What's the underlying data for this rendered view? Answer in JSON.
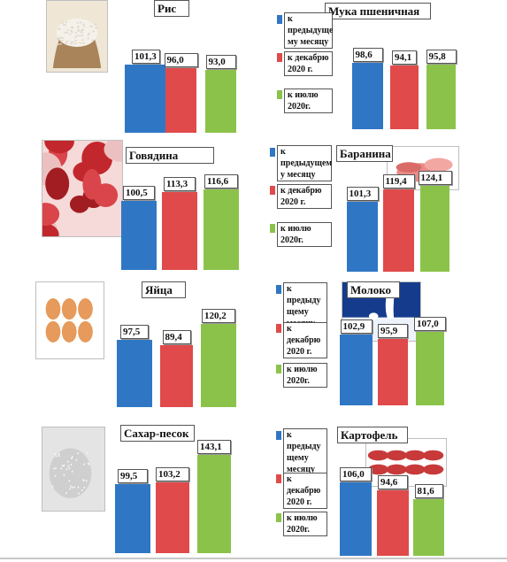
{
  "colors": {
    "blue": "#2f77c5",
    "red": "#e04a4a",
    "green": "#8bc34a"
  },
  "legend_icons": {
    "blue": "square",
    "red": "square",
    "green": "square"
  },
  "chart_data": [
    {
      "type": "bar",
      "title": "Рис",
      "categories": [
        "к предыдущему месяцу",
        "к декабрю 2020 г.",
        "к июлю 2020г."
      ],
      "values": [
        101.3,
        96.0,
        93.0
      ],
      "labels": [
        "101,3",
        "96,0",
        "93,0"
      ],
      "image": "rice-icon"
    },
    {
      "type": "bar",
      "title": "Мука пшеничная",
      "categories": [
        "к предыдущему месяцу",
        "к декабрю 2020 г.",
        "к июлю 2020г."
      ],
      "values": [
        98.6,
        94.1,
        95.8
      ],
      "labels": [
        "98,6",
        "94,1",
        "95,8"
      ],
      "legend": [
        "к предыдуще му месяцу",
        "к декабрю 2020 г.",
        "к июлю 2020г."
      ]
    },
    {
      "type": "bar",
      "title": "Говядина",
      "categories": [
        "к предыдущему месяцу",
        "к декабрю 2020 г.",
        "к июлю 2020г."
      ],
      "values": [
        100.5,
        113.3,
        116.6
      ],
      "labels": [
        "100,5",
        "113,3",
        "116,6"
      ],
      "image": "beef-icon"
    },
    {
      "type": "bar",
      "title": "Баранина",
      "categories": [
        "к предыдущему месяцу",
        "к декабрю 2020 г.",
        "к июлю 2020г."
      ],
      "values": [
        101.3,
        119.4,
        124.1
      ],
      "labels": [
        "101,3",
        "119,4",
        "124,1"
      ],
      "image": "lamb-icon",
      "legend": [
        "к предыдущем у месяцу",
        "к декабрю 2020 г.",
        "к июлю 2020г."
      ]
    },
    {
      "type": "bar",
      "title": "Яйца",
      "categories": [
        "к предыдущему месяцу",
        "к декабрю 2020 г.",
        "к июлю 2020г."
      ],
      "values": [
        97.5,
        89.4,
        120.2
      ],
      "labels": [
        "97,5",
        "89,4",
        "120,2"
      ],
      "image": "eggs-icon"
    },
    {
      "type": "bar",
      "title": "Молоко",
      "categories": [
        "к предыдущему месяцу",
        "к декабрю 2020 г.",
        "к июлю 2020г."
      ],
      "values": [
        102.9,
        95.9,
        107.0
      ],
      "labels": [
        "102,9",
        "95,9",
        "107,0"
      ],
      "image": "milk-icon",
      "legend": [
        "к предыду щему месяцу",
        "к декабрю 2020 г.",
        "к июлю 2020г."
      ]
    },
    {
      "type": "bar",
      "title": "Сахар-песок",
      "categories": [
        "к предыдущему месяцу",
        "к декабрю 2020 г.",
        "к июлю 2020г."
      ],
      "values": [
        99.5,
        103.2,
        143.1
      ],
      "labels": [
        "99,5",
        "103,2",
        "143,1"
      ],
      "image": "sugar-icon"
    },
    {
      "type": "bar",
      "title": "Картофель",
      "categories": [
        "к предыдущему месяцу",
        "к декабрю 2020 г.",
        "к июлю 2020г."
      ],
      "values": [
        106.0,
        94.6,
        81.6
      ],
      "labels": [
        "106,0",
        "94,6",
        "81,6"
      ],
      "image": "potato-icon",
      "legend": [
        "к предыду щему месяцу",
        "к декабрю 2020 г.",
        "к июлю 2020г."
      ]
    }
  ]
}
